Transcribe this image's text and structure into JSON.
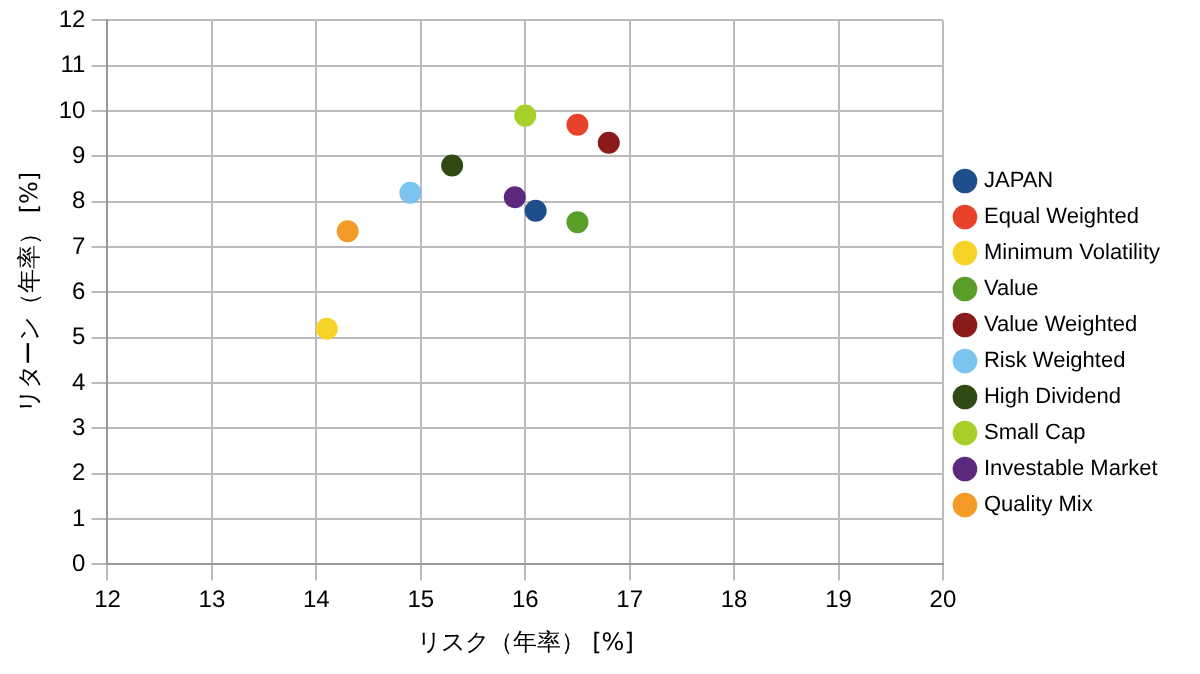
{
  "chart_data": {
    "type": "scatter",
    "xlabel": "リスク（年率） [%]",
    "ylabel": "リターン（年率） [%]",
    "xlim": [
      12,
      20
    ],
    "xticks": [
      12,
      13,
      14,
      15,
      16,
      17,
      18,
      19,
      20
    ],
    "ylim": [
      0,
      12
    ],
    "yticks": [
      0,
      1,
      2,
      3,
      4,
      5,
      6,
      7,
      8,
      9,
      10,
      11,
      12
    ],
    "grid": true,
    "legend": "right",
    "marker": "circle",
    "series": [
      {
        "name": "JAPAN",
        "color": "#1f4e8c",
        "x": [
          16.1
        ],
        "values": [
          7.8
        ]
      },
      {
        "name": "Equal Weighted",
        "color": "#e8432a",
        "x": [
          16.5
        ],
        "values": [
          9.7
        ]
      },
      {
        "name": "Minimum Volatility",
        "color": "#f5d327",
        "x": [
          14.1
        ],
        "values": [
          5.2
        ]
      },
      {
        "name": "Value",
        "color": "#5a9e2a",
        "x": [
          16.5
        ],
        "values": [
          7.55
        ]
      },
      {
        "name": "Value Weighted",
        "color": "#8b1a1a",
        "x": [
          16.8
        ],
        "values": [
          9.3
        ]
      },
      {
        "name": "Risk Weighted",
        "color": "#7cc4f0",
        "x": [
          14.9
        ],
        "values": [
          8.2
        ]
      },
      {
        "name": "High Dividend",
        "color": "#2f4a14",
        "x": [
          15.3
        ],
        "values": [
          8.8
        ]
      },
      {
        "name": "Small Cap",
        "color": "#a6cf2a",
        "x": [
          16.0
        ],
        "values": [
          9.9
        ]
      },
      {
        "name": "Investable Market",
        "color": "#5b2a7e",
        "x": [
          15.9
        ],
        "values": [
          8.1
        ]
      },
      {
        "name": "Quality Mix",
        "color": "#f39a28",
        "x": [
          14.3
        ],
        "values": [
          7.35
        ]
      }
    ]
  }
}
